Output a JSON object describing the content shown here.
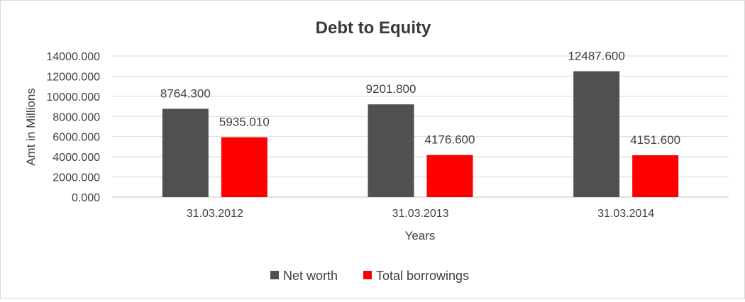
{
  "chart_data": {
    "type": "bar",
    "title": "Debt to Equity",
    "xlabel": "Years",
    "ylabel": "Amt in Millions",
    "categories": [
      "31.03.2012",
      "31.03.2013",
      "31.03.2014"
    ],
    "series": [
      {
        "name": "Net worth",
        "values": [
          8764.3,
          9201.8,
          12487.6
        ],
        "labels": [
          "8764.300",
          "9201.800",
          "12487.600"
        ],
        "color": "#505050"
      },
      {
        "name": "Total borrowings",
        "values": [
          5935.01,
          4176.6,
          4151.6
        ],
        "labels": [
          "5935.010",
          "4176.600",
          "4151.600"
        ],
        "color": "#ff0000"
      }
    ],
    "ylim": [
      0,
      14000
    ],
    "yticks": [
      0,
      2000,
      4000,
      6000,
      8000,
      10000,
      12000,
      14000
    ],
    "ytick_labels": [
      "0.000",
      "2000.000",
      "4000.000",
      "6000.000",
      "8000.000",
      "10000.000",
      "12000.000",
      "14000.000"
    ],
    "grid": true,
    "legend_position": "bottom"
  }
}
